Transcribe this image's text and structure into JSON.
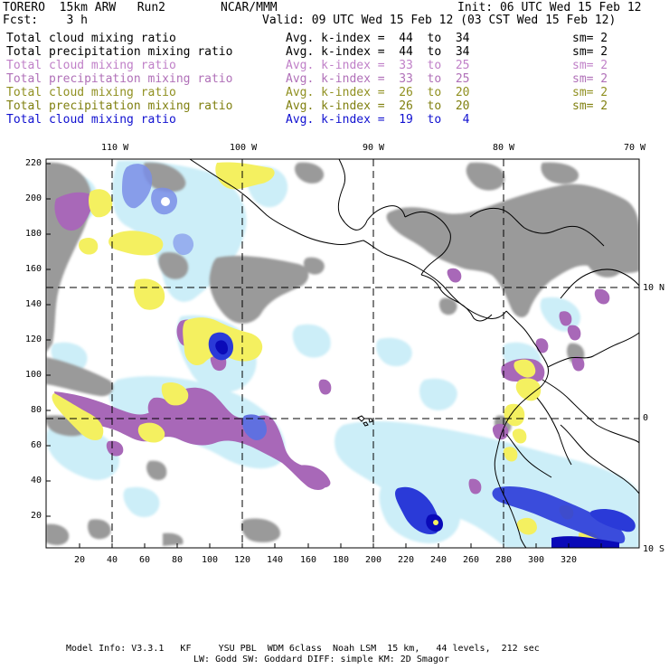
{
  "header": {
    "model": "TORERO  15km ARW   Run2",
    "org": "NCAR/MMM",
    "init": "Init: 06 UTC Wed 15 Feb 12",
    "fcst": "Fcst:    3 h",
    "valid": "Valid: 09 UTC Wed 15 Feb 12 (03 CST Wed 15 Feb 12)"
  },
  "legend": [
    {
      "field": "Total cloud mixing ratio",
      "kindex": "Avg. k-index =  44  to  34",
      "sm": "sm= 2",
      "color": "#000000"
    },
    {
      "field": "Total precipitation mixing ratio",
      "kindex": "Avg. k-index =  44  to  34",
      "sm": "sm= 2",
      "color": "#000000"
    },
    {
      "field": "Total cloud mixing ratio",
      "kindex": "Avg. k-index =  33  to  25",
      "sm": "sm= 2",
      "color": "#c080c8"
    },
    {
      "field": "Total precipitation mixing ratio",
      "kindex": "Avg. k-index =  33  to  25",
      "sm": "sm= 2",
      "color": "#b070b8"
    },
    {
      "field": "Total cloud mixing ratio",
      "kindex": "Avg. k-index =  26  to  20",
      "sm": "sm= 2",
      "color": "#909020"
    },
    {
      "field": "Total precipitation mixing ratio",
      "kindex": "Avg. k-index =  26  to  20",
      "sm": "sm= 2",
      "color": "#808010"
    },
    {
      "field": "Total cloud mixing ratio",
      "kindex": "Avg. k-index =  19  to   4",
      "sm": "",
      "color": "#1010d0"
    }
  ],
  "axes": {
    "top_lon": [
      "110 W",
      "100 W",
      "90 W",
      "80 W",
      "70 W"
    ],
    "right_lat": [
      "10 N",
      "0",
      "10 S"
    ],
    "left_ticks": [
      "220",
      "200",
      "180",
      "160",
      "140",
      "120",
      "100",
      "80",
      "60",
      "40",
      "20"
    ],
    "bottom_ticks": [
      "20",
      "40",
      "60",
      "80",
      "100",
      "120",
      "140",
      "160",
      "180",
      "200",
      "220",
      "240",
      "260",
      "280",
      "300",
      "320"
    ]
  },
  "footer": {
    "line1": "Model Info: V3.3.1   KF     YSU PBL  WDM 6class  Noah LSM  15 km,   44 levels,  212 sec",
    "line2": "LW: Godd SW: Goddard DIFF: simple KM: 2D Smagor"
  },
  "colors": {
    "gray": "#9a9a9a",
    "purple": "#a868b8",
    "yellow": "#f4f060",
    "lightblue": "#cceef8",
    "blue": "#2a3ad8",
    "darkblue": "#0a0ab8"
  }
}
